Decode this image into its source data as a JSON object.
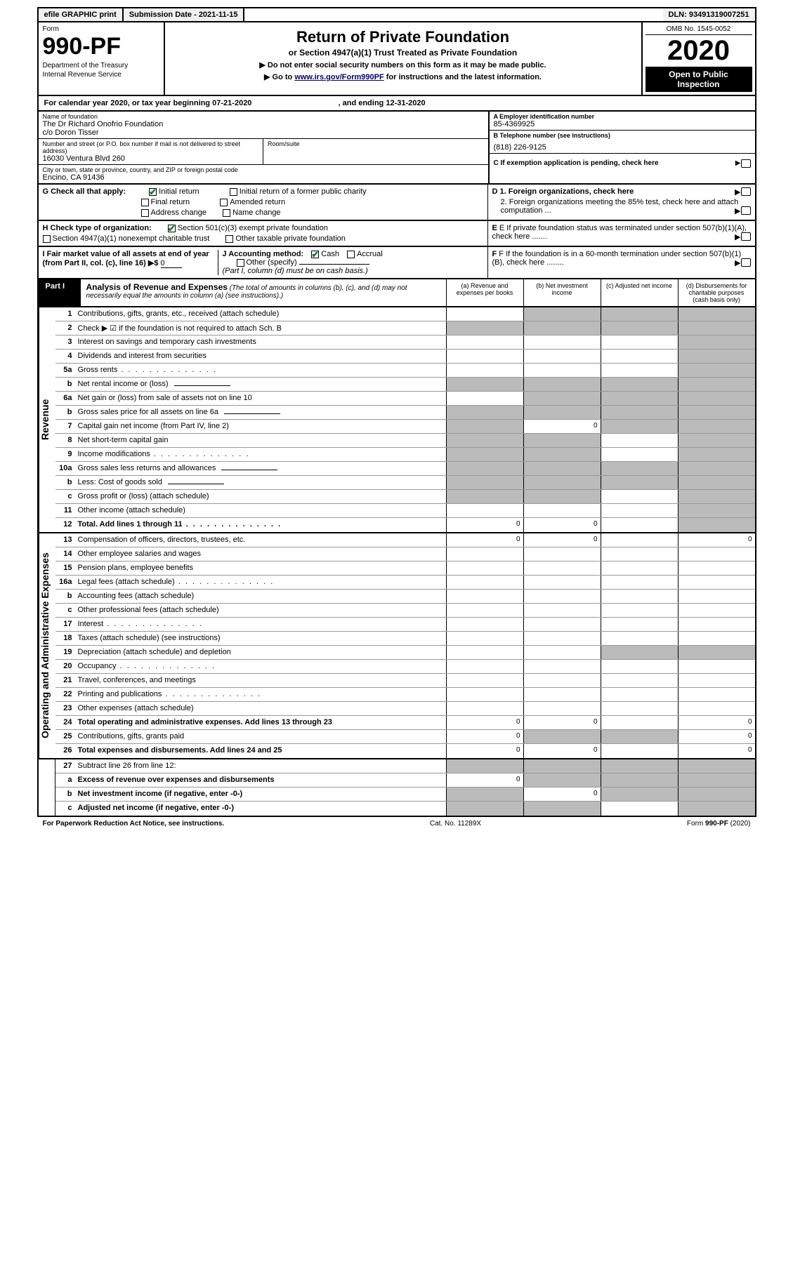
{
  "topbar": {
    "efile": "efile GRAPHIC print",
    "submission": "Submission Date - 2021-11-15",
    "dln": "DLN: 93491319007251"
  },
  "header": {
    "form_label": "Form",
    "form_number": "990-PF",
    "dept1": "Department of the Treasury",
    "dept2": "Internal Revenue Service",
    "title": "Return of Private Foundation",
    "subtitle": "or Section 4947(a)(1) Trust Treated as Private Foundation",
    "instr1": "▶ Do not enter social security numbers on this form as it may be made public.",
    "instr2_pre": "▶ Go to ",
    "instr2_link": "www.irs.gov/Form990PF",
    "instr2_post": " for instructions and the latest information.",
    "omb": "OMB No. 1545-0052",
    "year": "2020",
    "open_public": "Open to Public Inspection"
  },
  "cal_year": {
    "text_pre": "For calendar year 2020, or tax year beginning ",
    "begin": "07-21-2020",
    "text_mid": " , and ending ",
    "end": "12-31-2020"
  },
  "entity": {
    "name_label": "Name of foundation",
    "name1": "The Dr Richard Onofrio Foundation",
    "name2": "c/o Doron Tisser",
    "addr_label": "Number and street (or P.O. box number if mail is not delivered to street address)",
    "addr": "16030 Ventura Blvd 260",
    "room_label": "Room/suite",
    "room": "",
    "city_label": "City or town, state or province, country, and ZIP or foreign postal code",
    "city": "Encino, CA  91436",
    "ein_label": "A Employer identification number",
    "ein": "85-4369925",
    "phone_label": "B Telephone number (see instructions)",
    "phone": "(818) 226-9125",
    "c_label": "C If exemption application is pending, check here"
  },
  "g": {
    "label": "G Check all that apply:",
    "initial_return": "Initial return",
    "initial_former": "Initial return of a former public charity",
    "final_return": "Final return",
    "amended": "Amended return",
    "addr_change": "Address change",
    "name_change": "Name change"
  },
  "d": {
    "d1": "D 1. Foreign organizations, check here",
    "d2": "2. Foreign organizations meeting the 85% test, check here and attach computation ..."
  },
  "h": {
    "label": "H Check type of organization:",
    "s501c3": "Section 501(c)(3) exempt private foundation",
    "s4947": "Section 4947(a)(1) nonexempt charitable trust",
    "other_tax": "Other taxable private foundation"
  },
  "e": {
    "label": "E If private foundation status was terminated under section 507(b)(1)(A), check here ......."
  },
  "i": {
    "label_pre": "I Fair market value of all assets at end of year (from Part II, col. (c), line 16) ▶$ ",
    "value": "0"
  },
  "j": {
    "label": "J Accounting method:",
    "cash": "Cash",
    "accrual": "Accrual",
    "other": "Other (specify)",
    "note": "(Part I, column (d) must be on cash basis.)"
  },
  "f": {
    "label": "F If the foundation is in a 60-month termination under section 507(b)(1)(B), check here ........"
  },
  "part1": {
    "label": "Part I",
    "title": "Analysis of Revenue and Expenses",
    "note": " (The total of amounts in columns (b), (c), and (d) may not necessarily equal the amounts in column (a) (see instructions).)",
    "col_a": "(a) Revenue and expenses per books",
    "col_b": "(b) Net investment income",
    "col_c": "(c) Adjusted net income",
    "col_d": "(d) Disbursements for charitable purposes (cash basis only)"
  },
  "sides": {
    "revenue": "Revenue",
    "expenses": "Operating and Administrative Expenses"
  },
  "rows": [
    {
      "n": "1",
      "d": "Contributions, gifts, grants, etc., received (attach schedule)",
      "a": "",
      "b": "shaded",
      "c": "shaded",
      "dd": "shaded"
    },
    {
      "n": "2",
      "d": "Check ▶ ☑ if the foundation is not required to attach Sch. B",
      "a": "shaded",
      "b": "shaded",
      "c": "shaded",
      "dd": "shaded",
      "bold_not": true
    },
    {
      "n": "3",
      "d": "Interest on savings and temporary cash investments",
      "a": "",
      "b": "",
      "c": "",
      "dd": "shaded"
    },
    {
      "n": "4",
      "d": "Dividends and interest from securities",
      "a": "",
      "b": "",
      "c": "",
      "dd": "shaded"
    },
    {
      "n": "5a",
      "d": "Gross rents",
      "a": "",
      "b": "",
      "c": "",
      "dd": "shaded",
      "dots": true
    },
    {
      "n": "b",
      "d": "Net rental income or (loss)",
      "a": "shaded",
      "b": "shaded",
      "c": "shaded",
      "dd": "shaded",
      "sub": true
    },
    {
      "n": "6a",
      "d": "Net gain or (loss) from sale of assets not on line 10",
      "a": "",
      "b": "shaded",
      "c": "shaded",
      "dd": "shaded"
    },
    {
      "n": "b",
      "d": "Gross sales price for all assets on line 6a",
      "a": "shaded",
      "b": "shaded",
      "c": "shaded",
      "dd": "shaded",
      "sub": true
    },
    {
      "n": "7",
      "d": "Capital gain net income (from Part IV, line 2)",
      "a": "shaded",
      "b": "0",
      "c": "shaded",
      "dd": "shaded"
    },
    {
      "n": "8",
      "d": "Net short-term capital gain",
      "a": "shaded",
      "b": "shaded",
      "c": "",
      "dd": "shaded"
    },
    {
      "n": "9",
      "d": "Income modifications",
      "a": "shaded",
      "b": "shaded",
      "c": "",
      "dd": "shaded",
      "dots": true
    },
    {
      "n": "10a",
      "d": "Gross sales less returns and allowances",
      "a": "shaded",
      "b": "shaded",
      "c": "shaded",
      "dd": "shaded",
      "sub": true
    },
    {
      "n": "b",
      "d": "Less: Cost of goods sold",
      "a": "shaded",
      "b": "shaded",
      "c": "shaded",
      "dd": "shaded",
      "sub": true
    },
    {
      "n": "c",
      "d": "Gross profit or (loss) (attach schedule)",
      "a": "shaded",
      "b": "shaded",
      "c": "",
      "dd": "shaded"
    },
    {
      "n": "11",
      "d": "Other income (attach schedule)",
      "a": "",
      "b": "",
      "c": "",
      "dd": "shaded"
    },
    {
      "n": "12",
      "d": "Total. Add lines 1 through 11",
      "a": "0",
      "b": "0",
      "c": "",
      "dd": "shaded",
      "bold": true,
      "dots": true
    }
  ],
  "exp_rows": [
    {
      "n": "13",
      "d": "Compensation of officers, directors, trustees, etc.",
      "a": "0",
      "b": "0",
      "c": "",
      "dd": "0"
    },
    {
      "n": "14",
      "d": "Other employee salaries and wages",
      "a": "",
      "b": "",
      "c": "",
      "dd": ""
    },
    {
      "n": "15",
      "d": "Pension plans, employee benefits",
      "a": "",
      "b": "",
      "c": "",
      "dd": ""
    },
    {
      "n": "16a",
      "d": "Legal fees (attach schedule)",
      "a": "",
      "b": "",
      "c": "",
      "dd": "",
      "dots": true
    },
    {
      "n": "b",
      "d": "Accounting fees (attach schedule)",
      "a": "",
      "b": "",
      "c": "",
      "dd": ""
    },
    {
      "n": "c",
      "d": "Other professional fees (attach schedule)",
      "a": "",
      "b": "",
      "c": "",
      "dd": ""
    },
    {
      "n": "17",
      "d": "Interest",
      "a": "",
      "b": "",
      "c": "",
      "dd": "",
      "dots": true
    },
    {
      "n": "18",
      "d": "Taxes (attach schedule) (see instructions)",
      "a": "",
      "b": "",
      "c": "",
      "dd": ""
    },
    {
      "n": "19",
      "d": "Depreciation (attach schedule) and depletion",
      "a": "",
      "b": "",
      "c": "shaded",
      "dd": "shaded"
    },
    {
      "n": "20",
      "d": "Occupancy",
      "a": "",
      "b": "",
      "c": "",
      "dd": "",
      "dots": true
    },
    {
      "n": "21",
      "d": "Travel, conferences, and meetings",
      "a": "",
      "b": "",
      "c": "",
      "dd": ""
    },
    {
      "n": "22",
      "d": "Printing and publications",
      "a": "",
      "b": "",
      "c": "",
      "dd": "",
      "dots": true
    },
    {
      "n": "23",
      "d": "Other expenses (attach schedule)",
      "a": "",
      "b": "",
      "c": "",
      "dd": ""
    },
    {
      "n": "24",
      "d": "Total operating and administrative expenses. Add lines 13 through 23",
      "a": "0",
      "b": "0",
      "c": "",
      "dd": "0",
      "bold": true
    },
    {
      "n": "25",
      "d": "Contributions, gifts, grants paid",
      "a": "0",
      "b": "shaded",
      "c": "shaded",
      "dd": "0"
    },
    {
      "n": "26",
      "d": "Total expenses and disbursements. Add lines 24 and 25",
      "a": "0",
      "b": "0",
      "c": "",
      "dd": "0",
      "bold": true
    }
  ],
  "bottom_rows": [
    {
      "n": "27",
      "d": "Subtract line 26 from line 12:",
      "a": "shaded",
      "b": "shaded",
      "c": "shaded",
      "dd": "shaded"
    },
    {
      "n": "a",
      "d": "Excess of revenue over expenses and disbursements",
      "a": "0",
      "b": "shaded",
      "c": "shaded",
      "dd": "shaded",
      "bold": true
    },
    {
      "n": "b",
      "d": "Net investment income (if negative, enter -0-)",
      "a": "shaded",
      "b": "0",
      "c": "shaded",
      "dd": "shaded",
      "bold": true
    },
    {
      "n": "c",
      "d": "Adjusted net income (if negative, enter -0-)",
      "a": "shaded",
      "b": "shaded",
      "c": "",
      "dd": "shaded",
      "bold": true
    }
  ],
  "footer": {
    "left": "For Paperwork Reduction Act Notice, see instructions.",
    "center": "Cat. No. 11289X",
    "right": "Form 990-PF (2020)"
  },
  "colors": {
    "shaded": "#bbbbbb",
    "check_green": "#0a7d2a",
    "link": "#000066"
  }
}
